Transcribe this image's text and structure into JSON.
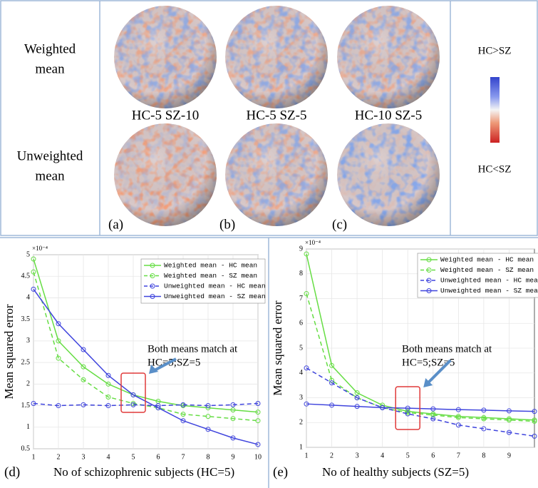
{
  "figure": {
    "row_labels": [
      [
        "Weighted",
        "mean"
      ],
      [
        "Unweighted",
        "mean"
      ]
    ],
    "captions": [
      "HC-5 SZ-10",
      "HC-5 SZ-5",
      "HC-10 SZ-5"
    ],
    "panel_labels": [
      "(a)",
      "(b)",
      "(c)"
    ],
    "colorbar_labels": [
      "HC>SZ",
      "HC<SZ"
    ]
  },
  "chart_data": [
    {
      "type": "line",
      "panel_label": "(d)",
      "scale_label": "×10⁻⁴",
      "ylabel": "Mean squared error",
      "xlabel": "No of schizophrenic subjects (HC=5)",
      "annotation": [
        "Both means match at",
        "HC=5;SZ=5"
      ],
      "x": [
        1,
        2,
        3,
        4,
        5,
        6,
        7,
        8,
        9,
        10
      ],
      "xlim": [
        1,
        10
      ],
      "xticks": [
        1,
        2,
        3,
        4,
        5,
        6,
        7,
        8,
        9,
        10
      ],
      "ylim": [
        0.5,
        5
      ],
      "yticks": [
        0.5,
        1,
        1.5,
        2,
        2.5,
        3,
        3.5,
        4,
        4.5,
        5
      ],
      "grid": true,
      "legend": "top-right",
      "series": [
        {
          "name": "Weighted mean - HC mean",
          "color": "#66dd44",
          "dashed": false,
          "values": [
            4.9,
            3.0,
            2.4,
            2.0,
            1.75,
            1.6,
            1.5,
            1.45,
            1.4,
            1.35
          ]
        },
        {
          "name": "Weighted mean - SZ mean",
          "color": "#66dd44",
          "dashed": true,
          "values": [
            4.6,
            2.6,
            2.1,
            1.7,
            1.55,
            1.45,
            1.3,
            1.25,
            1.2,
            1.15
          ]
        },
        {
          "name": "Unweighted mean - HC mean",
          "color": "#3f44dd",
          "dashed": true,
          "values": [
            1.55,
            1.5,
            1.52,
            1.5,
            1.52,
            1.5,
            1.52,
            1.5,
            1.52,
            1.55
          ]
        },
        {
          "name": "Unweighted mean - SZ mean",
          "color": "#3f44dd",
          "dashed": false,
          "values": [
            4.2,
            3.4,
            2.8,
            2.2,
            1.75,
            1.45,
            1.15,
            0.95,
            0.75,
            0.6
          ]
        }
      ]
    },
    {
      "type": "line",
      "panel_label": "(e)",
      "scale_label": "×10⁻⁴",
      "ylabel": "Mean squared error",
      "xlabel": "No of healthy subjects (SZ=5)",
      "annotation": [
        "Both means match at",
        "HC=5;SZ=5"
      ],
      "x": [
        1,
        2,
        3,
        4,
        5,
        6,
        7,
        8,
        9,
        10
      ],
      "xlim": [
        1,
        10
      ],
      "xticks": [
        1,
        2,
        3,
        4,
        5,
        6,
        7,
        8,
        9
      ],
      "ylim": [
        1,
        9
      ],
      "yticks": [
        1,
        2,
        3,
        4,
        5,
        6,
        7,
        8,
        9
      ],
      "grid": true,
      "legend": "top-right",
      "series": [
        {
          "name": "Weighted mean - HC mean",
          "color": "#66dd44",
          "dashed": false,
          "values": [
            8.8,
            4.3,
            3.2,
            2.7,
            2.45,
            2.35,
            2.25,
            2.2,
            2.15,
            2.1
          ]
        },
        {
          "name": "Weighted mean - SZ mean",
          "color": "#66dd44",
          "dashed": true,
          "values": [
            7.2,
            3.7,
            3.0,
            2.6,
            2.4,
            2.3,
            2.2,
            2.15,
            2.1,
            2.05
          ]
        },
        {
          "name": "Unweighted mean - HC mean",
          "color": "#3f44dd",
          "dashed": true,
          "values": [
            4.2,
            3.6,
            3.0,
            2.6,
            2.35,
            2.15,
            1.9,
            1.75,
            1.6,
            1.45
          ]
        },
        {
          "name": "Unweighted mean - SZ mean",
          "color": "#3f44dd",
          "dashed": false,
          "values": [
            2.75,
            2.7,
            2.65,
            2.6,
            2.58,
            2.55,
            2.52,
            2.5,
            2.47,
            2.45
          ]
        }
      ]
    }
  ]
}
